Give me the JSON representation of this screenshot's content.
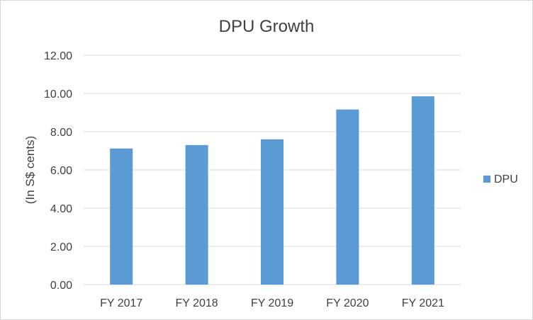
{
  "chart_data": {
    "type": "bar",
    "title": "DPU Growth",
    "xlabel": "",
    "ylabel": "(In S$ cents)",
    "categories": [
      "FY 2017",
      "FY 2018",
      "FY 2019",
      "FY 2020",
      "FY 2021"
    ],
    "series": [
      {
        "name": "DPU",
        "values": [
          7.12,
          7.3,
          7.6,
          9.16,
          9.85
        ],
        "color": "#5b9bd5"
      }
    ],
    "ylim": [
      0,
      12
    ],
    "yticks": [
      "0.00",
      "2.00",
      "4.00",
      "6.00",
      "8.00",
      "10.00",
      "12.00"
    ],
    "grid": true,
    "legend_position": "right"
  }
}
